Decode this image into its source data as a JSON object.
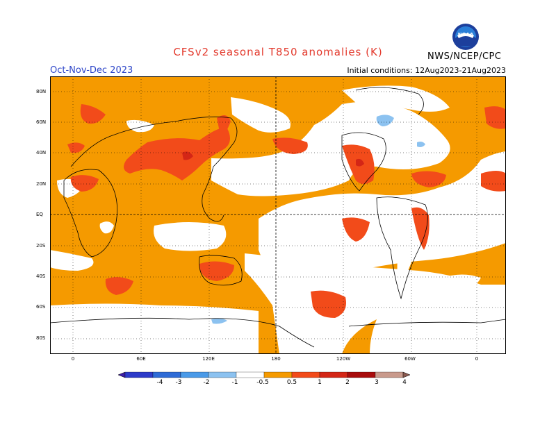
{
  "title": "CFSv2 seasonal T850 anomalies (K)",
  "period": "Oct-Nov-Dec 2023",
  "initial_conditions": "Initial conditions: 12Aug2023-21Aug2023",
  "credit": "NWS/NCEP/CPC",
  "logo_text": "NOAA",
  "lat_labels": [
    "80N",
    "60N",
    "40N",
    "20N",
    "EQ",
    "20S",
    "40S",
    "60S",
    "80S"
  ],
  "lon_labels": [
    "0",
    "60E",
    "120E",
    "180",
    "120W",
    "60W",
    "0"
  ],
  "colorbar": {
    "ticks": [
      "-4",
      "-3",
      "-2",
      "-1",
      "-0.5",
      "0.5",
      "1",
      "2",
      "3",
      "4"
    ],
    "colors": [
      "#3d1ea8",
      "#2d3bc9",
      "#2e6bd6",
      "#4a9ae8",
      "#8cc2f0",
      "#ffffff",
      "#f59a00",
      "#f24b1a",
      "#d42616",
      "#a80c0c",
      "#c99a8c",
      "#8a5a50"
    ]
  },
  "legend_colors": {
    "ocean_land_neutral": "#ffffff",
    "warm_05_1": "#f59a00",
    "warm_1_2": "#f24b1a",
    "warm_2_3": "#d42616",
    "cool_05_1": "#8cc2f0"
  }
}
